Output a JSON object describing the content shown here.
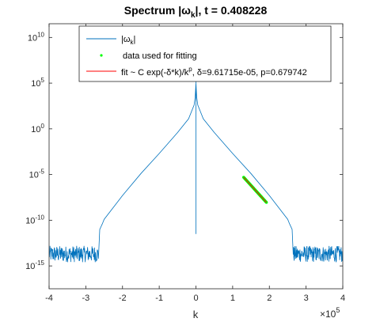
{
  "chart_data": {
    "type": "line",
    "title_prefix": "Spectrum |ω",
    "title_sub": "k",
    "title_suffix": "|, t = 0.408228",
    "xlabel": "k",
    "x_multiplier": "×10",
    "x_multiplier_exp": "5",
    "xlim": [
      -4,
      4
    ],
    "ylim_log10": [
      -17.5,
      11.5
    ],
    "y_scale": "log",
    "grid": false,
    "legend_placement": "top-center",
    "x_ticks": [
      {
        "v": -4,
        "label": "-4"
      },
      {
        "v": -3,
        "label": "-3"
      },
      {
        "v": -2,
        "label": "-2"
      },
      {
        "v": -1,
        "label": "-1"
      },
      {
        "v": 0,
        "label": "0"
      },
      {
        "v": 1,
        "label": "1"
      },
      {
        "v": 2,
        "label": "2"
      },
      {
        "v": 3,
        "label": "3"
      },
      {
        "v": 4,
        "label": "4"
      }
    ],
    "y_ticks": [
      {
        "v": -15,
        "base": "10",
        "exp": "-15"
      },
      {
        "v": -10,
        "base": "10",
        "exp": "-10"
      },
      {
        "v": -5,
        "base": "10",
        "exp": "-5"
      },
      {
        "v": 0,
        "base": "10",
        "exp": "0"
      },
      {
        "v": 5,
        "base": "10",
        "exp": "5"
      },
      {
        "v": 10,
        "base": "10",
        "exp": "10"
      }
    ],
    "series": [
      {
        "name": "|ω_k|",
        "legend_text": "|ω",
        "legend_sub": "k",
        "legend_suffix": "|",
        "color": "#0072BD",
        "spectrum_points": [
          [
            -2.62,
            -11.0
          ],
          [
            -2.55,
            -10.4
          ],
          [
            -2.5,
            -9.9
          ],
          [
            -2.0,
            -7.3
          ],
          [
            -1.5,
            -4.9
          ],
          [
            -1.0,
            -2.7
          ],
          [
            -0.5,
            -0.4
          ],
          [
            -0.2,
            1.1
          ],
          [
            -0.05,
            2.6
          ],
          [
            -0.02,
            3.5
          ],
          [
            0,
            5.0
          ],
          [
            0,
            5.5
          ],
          [
            0,
            -11.5
          ],
          [
            0,
            5.5
          ],
          [
            0,
            5.0
          ],
          [
            0.02,
            3.5
          ],
          [
            0.05,
            2.6
          ],
          [
            0.2,
            1.1
          ],
          [
            0.5,
            -0.4
          ],
          [
            1.0,
            -2.7
          ],
          [
            1.5,
            -4.9
          ],
          [
            2.0,
            -7.3
          ],
          [
            2.5,
            -9.9
          ],
          [
            2.55,
            -10.4
          ],
          [
            2.62,
            -11.0
          ]
        ],
        "noise_floor": {
          "x_min": 2.65,
          "x_max": 4.0,
          "log10_range": [
            -14.6,
            -12.8
          ]
        }
      },
      {
        "name": "data used for fitting",
        "legend_text": "data used for fitting",
        "color": "#00FF00",
        "x_range": [
          1.3,
          1.92
        ],
        "log10_range": [
          -5.3,
          -8.05
        ]
      },
      {
        "name": "fit",
        "legend_text": "fit ~ C exp(-δ*k)/k",
        "legend_sup": "p",
        "legend_suffix": ", δ=9.61715e-05, p=0.679742",
        "color": "#FF0000",
        "x_range": [
          1.3,
          1.92
        ],
        "log10_range": [
          -5.3,
          -8.05
        ]
      }
    ]
  }
}
